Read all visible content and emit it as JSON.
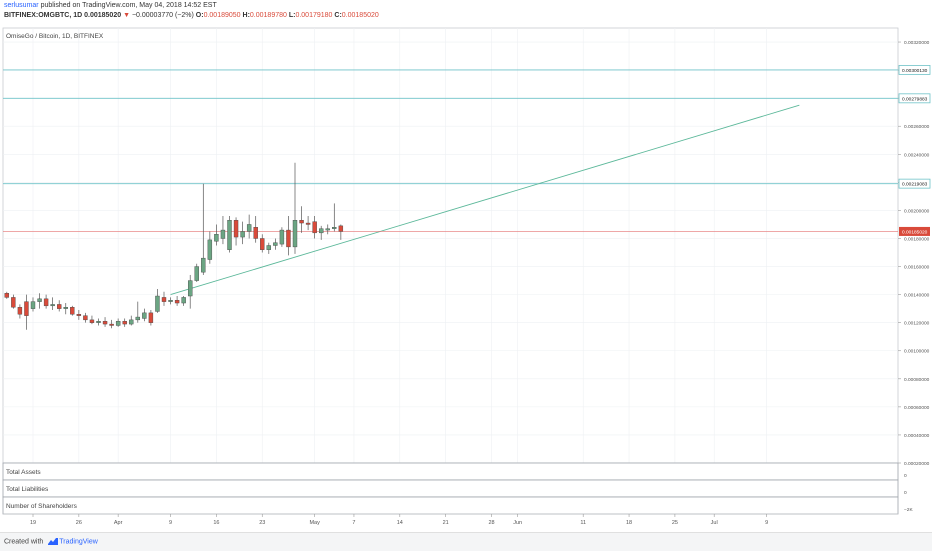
{
  "header": {
    "author": "serlusumar",
    "published_text": "published on TradingView.com, May 04, 2018 14:52 EST",
    "symbol": "BITFINEX:OMGBTC, 1D",
    "price": "0.00185020",
    "arrow": "▼",
    "change": "−0.00003770 (−2%)",
    "o_label": "O:",
    "o_value": "0.00189050",
    "h_label": "H:",
    "h_value": "0.00189780",
    "l_label": "L:",
    "l_value": "0.00179180",
    "c_label": "C:",
    "c_value": "0.00185020"
  },
  "footer": {
    "created_with": "Created with",
    "brand": "TradingView"
  },
  "colors": {
    "up": "#6ba583",
    "down": "#d94a3a",
    "wick": "#555555",
    "hline": "#6fc3c8",
    "trend": "#5cb89a",
    "price_line": "#e57373",
    "grid": "#eef0f3"
  },
  "chart_data": {
    "type": "candlestick",
    "title": "OmiseGo / Bitcoin, 1D, BITFINEX",
    "y_ticks": [
      "0.00320000",
      "0.00300000",
      "0.00280000",
      "0.00260000",
      "0.00240000",
      "0.00220000",
      "0.00200000",
      "0.00180000",
      "0.00160000",
      "0.00140000",
      "0.00120000",
      "0.00100000",
      "0.00080000",
      "0.00060000",
      "0.00040000",
      "0.00020000"
    ],
    "ylim": [
      0.0002,
      0.0033
    ],
    "x_ticks": [
      {
        "label": "19",
        "day": 0
      },
      {
        "label": "26",
        "day": 7
      },
      {
        "label": "Apr",
        "day": 13
      },
      {
        "label": "9",
        "day": 21
      },
      {
        "label": "16",
        "day": 28
      },
      {
        "label": "23",
        "day": 35
      },
      {
        "label": "May",
        "day": 43
      },
      {
        "label": "7",
        "day": 49
      },
      {
        "label": "14",
        "day": 56
      },
      {
        "label": "21",
        "day": 63
      },
      {
        "label": "28",
        "day": 70
      },
      {
        "label": "Jun",
        "day": 74
      },
      {
        "label": "11",
        "day": 84
      },
      {
        "label": "18",
        "day": 91
      },
      {
        "label": "25",
        "day": 98
      },
      {
        "label": "Jul",
        "day": 104
      },
      {
        "label": "9",
        "day": 112
      }
    ],
    "start_date": "2018-03-19",
    "candles": [
      {
        "d": -4,
        "o": 0.00141,
        "h": 0.00142,
        "c": 0.00138,
        "l": 0.00137
      },
      {
        "d": -3,
        "o": 0.00138,
        "h": 0.0014,
        "c": 0.00131,
        "l": 0.0013
      },
      {
        "d": -2,
        "o": 0.00131,
        "h": 0.00133,
        "c": 0.00126,
        "l": 0.00123
      },
      {
        "d": -1,
        "o": 0.00135,
        "h": 0.0014,
        "c": 0.00125,
        "l": 0.00115
      },
      {
        "d": 0,
        "o": 0.0013,
        "h": 0.00138,
        "c": 0.00135,
        "l": 0.00128
      },
      {
        "d": 1,
        "o": 0.00135,
        "h": 0.00141,
        "c": 0.00137,
        "l": 0.0013
      },
      {
        "d": 2,
        "o": 0.00137,
        "h": 0.0014,
        "c": 0.00132,
        "l": 0.0013
      },
      {
        "d": 3,
        "o": 0.00132,
        "h": 0.00138,
        "c": 0.00133,
        "l": 0.00129
      },
      {
        "d": 4,
        "o": 0.00133,
        "h": 0.00136,
        "c": 0.0013,
        "l": 0.00128
      },
      {
        "d": 5,
        "o": 0.0013,
        "h": 0.00134,
        "c": 0.00131,
        "l": 0.00126
      },
      {
        "d": 6,
        "o": 0.00131,
        "h": 0.00132,
        "c": 0.00126,
        "l": 0.00125
      },
      {
        "d": 7,
        "o": 0.00126,
        "h": 0.00129,
        "c": 0.00125,
        "l": 0.00122
      },
      {
        "d": 8,
        "o": 0.00125,
        "h": 0.00127,
        "c": 0.00122,
        "l": 0.0012
      },
      {
        "d": 9,
        "o": 0.00122,
        "h": 0.00125,
        "c": 0.0012,
        "l": 0.00119
      },
      {
        "d": 10,
        "o": 0.0012,
        "h": 0.00123,
        "c": 0.00121,
        "l": 0.00118
      },
      {
        "d": 11,
        "o": 0.00121,
        "h": 0.00124,
        "c": 0.00119,
        "l": 0.00117
      },
      {
        "d": 12,
        "o": 0.00119,
        "h": 0.00122,
        "c": 0.00118,
        "l": 0.00116
      },
      {
        "d": 13,
        "o": 0.00118,
        "h": 0.00123,
        "c": 0.00121,
        "l": 0.00117
      },
      {
        "d": 14,
        "o": 0.00121,
        "h": 0.00123,
        "c": 0.00119,
        "l": 0.00117
      },
      {
        "d": 15,
        "o": 0.00119,
        "h": 0.00125,
        "c": 0.00122,
        "l": 0.00118
      },
      {
        "d": 16,
        "o": 0.00122,
        "h": 0.00135,
        "c": 0.00124,
        "l": 0.0012
      },
      {
        "d": 17,
        "o": 0.00123,
        "h": 0.0013,
        "c": 0.00127,
        "l": 0.00121
      },
      {
        "d": 18,
        "o": 0.00127,
        "h": 0.00129,
        "c": 0.0012,
        "l": 0.00118
      },
      {
        "d": 19,
        "o": 0.00128,
        "h": 0.00144,
        "c": 0.00139,
        "l": 0.00127
      },
      {
        "d": 20,
        "o": 0.00138,
        "h": 0.00142,
        "c": 0.00135,
        "l": 0.00132
      },
      {
        "d": 21,
        "o": 0.00135,
        "h": 0.00138,
        "c": 0.00136,
        "l": 0.00133
      },
      {
        "d": 22,
        "o": 0.00136,
        "h": 0.00139,
        "c": 0.00134,
        "l": 0.00132
      },
      {
        "d": 23,
        "o": 0.00134,
        "h": 0.00139,
        "c": 0.00138,
        "l": 0.00132
      },
      {
        "d": 24,
        "o": 0.00139,
        "h": 0.00154,
        "c": 0.0015,
        "l": 0.0013
      },
      {
        "d": 25,
        "o": 0.0015,
        "h": 0.00162,
        "c": 0.0016,
        "l": 0.00149
      },
      {
        "d": 26,
        "o": 0.00156,
        "h": 0.00219,
        "c": 0.00166,
        "l": 0.00154
      },
      {
        "d": 27,
        "o": 0.00165,
        "h": 0.00185,
        "c": 0.00179,
        "l": 0.00162
      },
      {
        "d": 28,
        "o": 0.00178,
        "h": 0.0019,
        "c": 0.00183,
        "l": 0.00175
      },
      {
        "d": 29,
        "o": 0.0018,
        "h": 0.00196,
        "c": 0.00186,
        "l": 0.00176
      },
      {
        "d": 30,
        "o": 0.00172,
        "h": 0.00196,
        "c": 0.00193,
        "l": 0.0017
      },
      {
        "d": 31,
        "o": 0.00193,
        "h": 0.00195,
        "c": 0.00181,
        "l": 0.00175
      },
      {
        "d": 32,
        "o": 0.00181,
        "h": 0.00192,
        "c": 0.00185,
        "l": 0.00176
      },
      {
        "d": 33,
        "o": 0.00185,
        "h": 0.00197,
        "c": 0.0019,
        "l": 0.0018
      },
      {
        "d": 34,
        "o": 0.00188,
        "h": 0.00196,
        "c": 0.0018,
        "l": 0.00177
      },
      {
        "d": 35,
        "o": 0.0018,
        "h": 0.00183,
        "c": 0.00172,
        "l": 0.0017
      },
      {
        "d": 36,
        "o": 0.00172,
        "h": 0.00177,
        "c": 0.00175,
        "l": 0.00169
      },
      {
        "d": 37,
        "o": 0.00175,
        "h": 0.0018,
        "c": 0.00177,
        "l": 0.00172
      },
      {
        "d": 38,
        "o": 0.00176,
        "h": 0.00188,
        "c": 0.00186,
        "l": 0.00174
      },
      {
        "d": 39,
        "o": 0.00186,
        "h": 0.00196,
        "c": 0.00174,
        "l": 0.00168
      },
      {
        "d": 40,
        "o": 0.00174,
        "h": 0.00234,
        "c": 0.00193,
        "l": 0.00169
      },
      {
        "d": 41,
        "o": 0.00193,
        "h": 0.00203,
        "c": 0.00191,
        "l": 0.00184
      },
      {
        "d": 42,
        "o": 0.00191,
        "h": 0.00196,
        "c": 0.0019,
        "l": 0.00186
      },
      {
        "d": 43,
        "o": 0.00192,
        "h": 0.00196,
        "c": 0.00184,
        "l": 0.0018
      },
      {
        "d": 44,
        "o": 0.00184,
        "h": 0.00189,
        "c": 0.00187,
        "l": 0.00179
      },
      {
        "d": 45,
        "o": 0.00186,
        "h": 0.0019,
        "c": 0.00187,
        "l": 0.00183
      },
      {
        "d": 46,
        "o": 0.00187,
        "h": 0.00205,
        "c": 0.00188,
        "l": 0.00185
      },
      {
        "d": 47,
        "o": 0.00189,
        "h": 0.0019,
        "c": 0.00185,
        "l": 0.00179
      }
    ],
    "horizontal_levels": [
      {
        "value": 0.0030013,
        "label": "0.00300130"
      },
      {
        "value": 0.00279883,
        "label": "0.00279883"
      },
      {
        "value": 0.00219083,
        "label": "0.00219083"
      }
    ],
    "last_price": {
      "value": 0.0018502,
      "label": "0.00185020"
    },
    "trendline": {
      "start": {
        "day": 21,
        "value": 0.0014
      },
      "end": {
        "day": 117,
        "value": 0.00275
      }
    },
    "indicator_panes": [
      {
        "title": "Total Assets",
        "tick": "0"
      },
      {
        "title": "Total Liabilities",
        "tick": "0"
      },
      {
        "title": "Number of Shareholders",
        "tick": "−2K"
      }
    ]
  }
}
